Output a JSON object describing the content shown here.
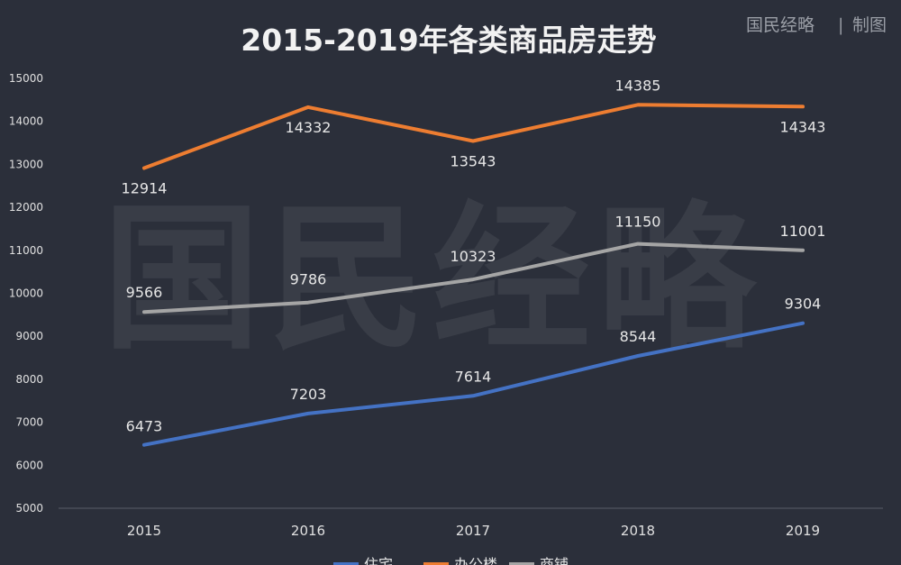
{
  "header": {
    "title": "2015-2019年各类商品房走势",
    "credit_brand": "国民经略",
    "credit_separator": "|",
    "credit_action": "制图"
  },
  "watermark": {
    "text": "国民经略"
  },
  "colors": {
    "background": "#2b2f3a",
    "text": "#e6e6e6",
    "axis": "#5a5e68",
    "residential": "#4472c4",
    "office": "#ed7d31",
    "retail": "#a5a5a5"
  },
  "chart_data": {
    "type": "line",
    "title": "2015-2019年各类商品房走势",
    "categories": [
      "2015",
      "2016",
      "2017",
      "2018",
      "2019"
    ],
    "ylim": [
      5000,
      15000
    ],
    "yticks": [
      5000,
      6000,
      7000,
      8000,
      9000,
      10000,
      11000,
      12000,
      13000,
      14000,
      15000
    ],
    "grid": false,
    "legend_position": "bottom",
    "series": [
      {
        "name": "住宅",
        "color": "#4472c4",
        "values": [
          6473,
          7203,
          7614,
          8544,
          9304
        ]
      },
      {
        "name": "办公楼",
        "color": "#ed7d31",
        "values": [
          12914,
          14332,
          13543,
          14385,
          14343
        ]
      },
      {
        "name": "商铺",
        "color": "#a5a5a5",
        "values": [
          9566,
          9786,
          10323,
          11150,
          11001
        ]
      }
    ]
  }
}
